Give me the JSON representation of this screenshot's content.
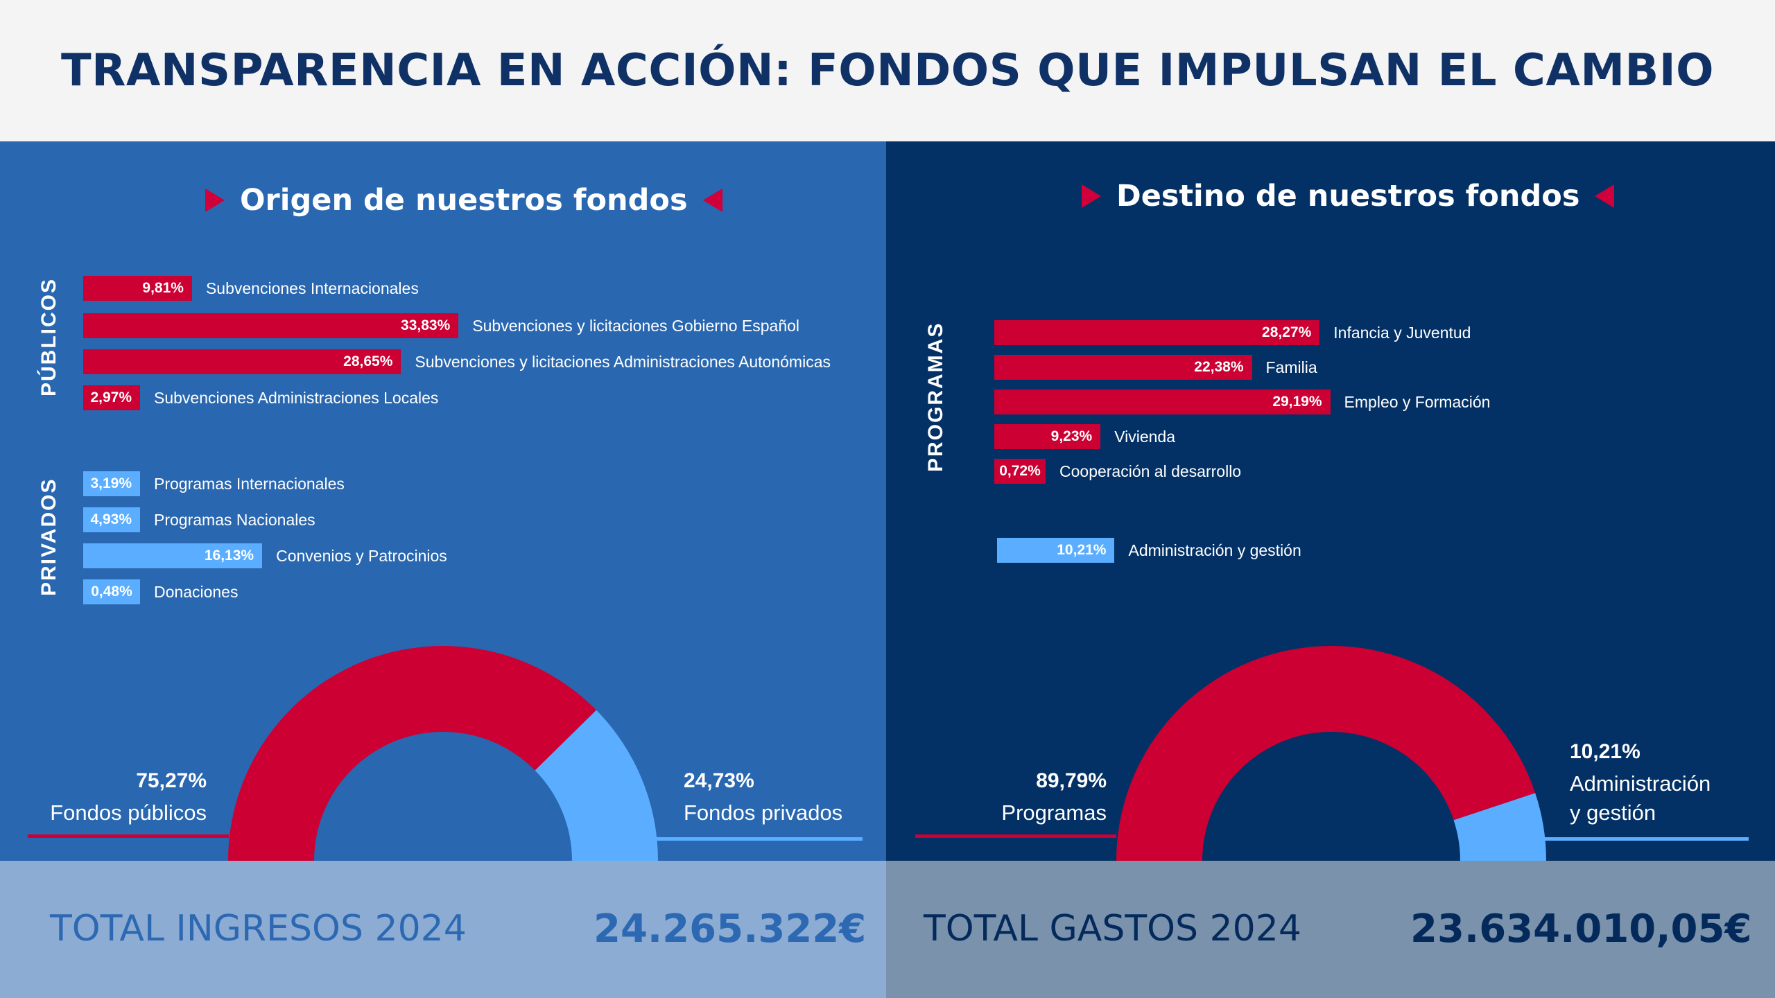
{
  "title": "TRANSPARENCIA EN ACCIÓN: FONDOS QUE IMPULSAN EL CAMBIO",
  "colors": {
    "red": "#cc0033",
    "light_blue": "#5baeff",
    "left_bg": "#2967b0",
    "right_bg": "#033166"
  },
  "origin": {
    "title": "Origen de nuestros fondos",
    "groups": [
      {
        "label": "PÚBLICOS",
        "color": "red",
        "items": [
          {
            "label": "Subvenciones Internacionales",
            "pct": 9.81,
            "text": "9,81%"
          },
          {
            "label": "Subvenciones y licitaciones Gobierno Español",
            "pct": 33.83,
            "text": "33,83%"
          },
          {
            "label": "Subvenciones y licitaciones Administraciones Autonómicas",
            "pct": 28.65,
            "text": "28,65%"
          },
          {
            "label": "Subvenciones Administraciones Locales",
            "pct": 2.97,
            "text": "2,97%"
          }
        ]
      },
      {
        "label": "PRIVADOS",
        "color": "light_blue",
        "items": [
          {
            "label": "Programas Internacionales",
            "pct": 3.19,
            "text": "3,19%"
          },
          {
            "label": "Programas Nacionales",
            "pct": 4.93,
            "text": "4,93%"
          },
          {
            "label": "Convenios y Patrocinios",
            "pct": 16.13,
            "text": "16,13%"
          },
          {
            "label": "Donaciones",
            "pct": 0.48,
            "text": "0,48%"
          }
        ]
      }
    ],
    "donut": {
      "left": {
        "pct_text": "75,27%",
        "caption": "Fondos públicos",
        "value": 75.27
      },
      "right": {
        "pct_text": "24,73%",
        "caption": "Fondos privados",
        "value": 24.73
      }
    },
    "total_label": "TOTAL INGRESOS 2024",
    "total_value": "24.265.322€"
  },
  "destination": {
    "title": "Destino de nuestros fondos",
    "groups": [
      {
        "label": "PROGRAMAS",
        "color": "red",
        "items": [
          {
            "label": "Infancia y Juventud",
            "pct": 28.27,
            "text": "28,27%"
          },
          {
            "label": "Familia",
            "pct": 22.38,
            "text": "22,38%"
          },
          {
            "label": "Empleo y Formación",
            "pct": 29.19,
            "text": "29,19%"
          },
          {
            "label": "Vivienda",
            "pct": 9.23,
            "text": "9,23%"
          },
          {
            "label": "Cooperación al desarrollo",
            "pct": 0.72,
            "text": "0,72%"
          }
        ]
      },
      {
        "label": "",
        "color": "light_blue",
        "items": [
          {
            "label": "Administración y gestión",
            "pct": 10.21,
            "text": "10,21%"
          }
        ]
      }
    ],
    "donut": {
      "left": {
        "pct_text": "89,79%",
        "caption": "Programas",
        "value": 89.79
      },
      "right": {
        "pct_text": "10,21%",
        "caption_line1": "Administración",
        "caption_line2": "y gestión",
        "value": 10.21
      }
    },
    "total_label": "TOTAL GASTOS 2024",
    "total_value": "23.634.010,05€"
  },
  "chart_data": [
    {
      "type": "bar",
      "title": "Origen de nuestros fondos",
      "categories": [
        "Subvenciones Internacionales",
        "Subvenciones y licitaciones Gobierno Español",
        "Subvenciones y licitaciones Administraciones Autonómicas",
        "Subvenciones Administraciones Locales",
        "Programas Internacionales",
        "Programas Nacionales",
        "Convenios y Patrocinios",
        "Donaciones"
      ],
      "values": [
        9.81,
        33.83,
        28.65,
        2.97,
        3.19,
        4.93,
        16.13,
        0.48
      ],
      "groups": [
        "PÚBLICOS",
        "PÚBLICOS",
        "PÚBLICOS",
        "PÚBLICOS",
        "PRIVADOS",
        "PRIVADOS",
        "PRIVADOS",
        "PRIVADOS"
      ]
    },
    {
      "type": "pie",
      "subtype": "half-donut",
      "categories": [
        "Fondos públicos",
        "Fondos privados"
      ],
      "values": [
        75.27,
        24.73
      ]
    },
    {
      "type": "bar",
      "title": "Destino de nuestros fondos",
      "categories": [
        "Infancia y Juventud",
        "Familia",
        "Empleo y Formación",
        "Vivienda",
        "Cooperación al desarrollo",
        "Administración y gestión"
      ],
      "values": [
        28.27,
        22.38,
        29.19,
        9.23,
        0.72,
        10.21
      ],
      "groups": [
        "PROGRAMAS",
        "PROGRAMAS",
        "PROGRAMAS",
        "PROGRAMAS",
        "PROGRAMAS",
        ""
      ]
    },
    {
      "type": "pie",
      "subtype": "half-donut",
      "categories": [
        "Programas",
        "Administración y gestión"
      ],
      "values": [
        89.79,
        10.21
      ]
    }
  ]
}
